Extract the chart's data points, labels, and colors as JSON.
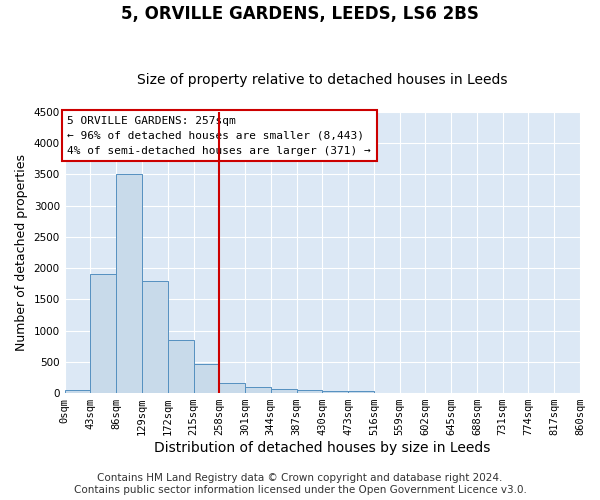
{
  "title1": "5, ORVILLE GARDENS, LEEDS, LS6 2BS",
  "title2": "Size of property relative to detached houses in Leeds",
  "xlabel": "Distribution of detached houses by size in Leeds",
  "ylabel": "Number of detached properties",
  "bin_edges": [
    0,
    43,
    86,
    129,
    172,
    215,
    258,
    301,
    344,
    387,
    430,
    473,
    516,
    559,
    602,
    645,
    688,
    731,
    774,
    817,
    860
  ],
  "bar_heights": [
    50,
    1900,
    3500,
    1800,
    850,
    460,
    160,
    100,
    70,
    55,
    40,
    30,
    0,
    0,
    0,
    0,
    0,
    0,
    0,
    0
  ],
  "bar_color": "#c8daea",
  "bar_edge_color": "#5590c0",
  "property_line_x": 258,
  "property_line_color": "#cc0000",
  "ylim": [
    0,
    4500
  ],
  "yticks": [
    0,
    500,
    1000,
    1500,
    2000,
    2500,
    3000,
    3500,
    4000,
    4500
  ],
  "annotation_text": "5 ORVILLE GARDENS: 257sqm\n← 96% of detached houses are smaller (8,443)\n4% of semi-detached houses are larger (371) →",
  "annotation_box_color": "#ffffff",
  "annotation_box_edge_color": "#cc0000",
  "footer1": "Contains HM Land Registry data © Crown copyright and database right 2024.",
  "footer2": "Contains public sector information licensed under the Open Government Licence v3.0.",
  "background_color": "#dce8f5",
  "grid_color": "#ffffff",
  "fig_bg_color": "#ffffff",
  "title1_fontsize": 12,
  "title2_fontsize": 10,
  "xlabel_fontsize": 10,
  "ylabel_fontsize": 9,
  "tick_fontsize": 7.5,
  "footer_fontsize": 7.5,
  "annotation_fontsize": 8
}
